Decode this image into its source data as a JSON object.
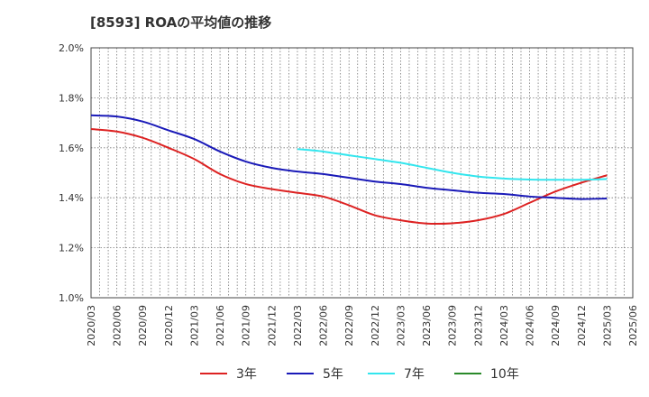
{
  "chart_data": {
    "type": "line",
    "title": "[8593]  ROAの平均値の推移",
    "xlabel": "",
    "ylabel": "",
    "ylim": [
      1.0,
      2.0
    ],
    "y_ticks": [
      "1.0%",
      "1.2%",
      "1.4%",
      "1.6%",
      "1.8%",
      "2.0%"
    ],
    "x_ticks": [
      "2020/03",
      "2020/06",
      "2020/09",
      "2020/12",
      "2021/03",
      "2021/06",
      "2021/09",
      "2021/12",
      "2022/03",
      "2022/06",
      "2022/09",
      "2022/12",
      "2023/03",
      "2023/06",
      "2023/09",
      "2023/12",
      "2024/03",
      "2024/06",
      "2024/09",
      "2024/12",
      "2025/03",
      "2025/06"
    ],
    "grid": true,
    "legend_position": "bottom",
    "series": [
      {
        "name": "3年",
        "color": "#dd2222",
        "start_index": 0,
        "values": [
          1.675,
          1.665,
          1.64,
          1.6,
          1.555,
          1.495,
          1.455,
          1.435,
          1.42,
          1.405,
          1.37,
          1.33,
          1.31,
          1.297,
          1.298,
          1.31,
          1.335,
          1.38,
          1.425,
          1.46,
          1.49
        ]
      },
      {
        "name": "5年",
        "color": "#1a1ab8",
        "start_index": 0,
        "values": [
          1.73,
          1.725,
          1.705,
          1.67,
          1.635,
          1.585,
          1.545,
          1.52,
          1.505,
          1.495,
          1.48,
          1.465,
          1.455,
          1.44,
          1.43,
          1.42,
          1.415,
          1.405,
          1.4,
          1.395,
          1.397
        ]
      },
      {
        "name": "7年",
        "color": "#33e6ee",
        "start_index": 8,
        "values": [
          1.595,
          1.585,
          1.57,
          1.555,
          1.54,
          1.52,
          1.5,
          1.485,
          1.477,
          1.473,
          1.472,
          1.472,
          1.475
        ]
      },
      {
        "name": "10年",
        "color": "#2a8a2a",
        "start_index": 0,
        "values": []
      }
    ]
  }
}
